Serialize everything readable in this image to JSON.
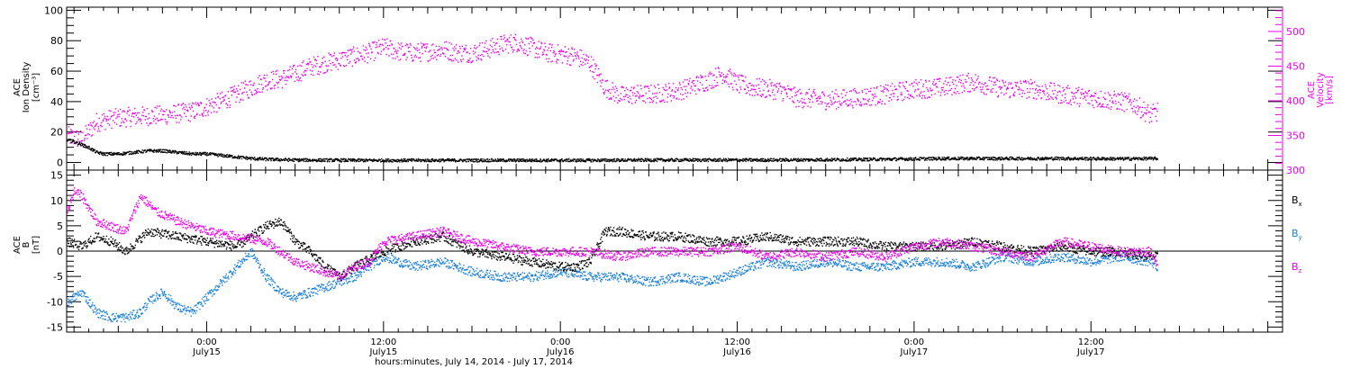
{
  "figure": {
    "xlabel": "hours:minutes, July 14, 2014 - July 17, 2014"
  },
  "colors": {
    "black": "#000000",
    "magenta": "#ee00ee",
    "blue": "#1a80d9"
  },
  "chart_data": [
    {
      "type": "scatter",
      "title": "",
      "ylabel_lines": [
        "ACE",
        "Ion Density",
        "[cm⁻³]"
      ],
      "y2label_lines": [
        "ACE",
        "Velocity",
        "[km/s]"
      ],
      "x_unit": "hours since July 14, 2014 00:00 UT",
      "xlim": [
        14.5,
        97
      ],
      "ylim": [
        -5,
        102
      ],
      "y_ticks": [
        0,
        20,
        40,
        60,
        80,
        100
      ],
      "y2lim": [
        300,
        535
      ],
      "y2_ticks": [
        300,
        350,
        400,
        450,
        500
      ],
      "x_ticks": [
        {
          "x": 24,
          "time": "0:00",
          "date": "July15"
        },
        {
          "x": 36,
          "time": "12:00",
          "date": "July15"
        },
        {
          "x": 48,
          "time": "0:00",
          "date": "July16"
        },
        {
          "x": 60,
          "time": "12:00",
          "date": "July16"
        },
        {
          "x": 72,
          "time": "0:00",
          "date": "July17"
        },
        {
          "x": 84,
          "time": "12:00",
          "date": "July17"
        }
      ],
      "series": [
        {
          "color": "black",
          "axis": "left",
          "x": [
            14.5,
            15.0,
            15.5,
            16.0,
            16.5,
            17,
            18,
            19,
            20,
            21,
            22,
            23,
            24,
            25,
            26,
            27,
            28,
            30,
            34,
            38,
            42,
            46,
            50,
            54,
            58,
            62,
            66,
            70,
            74,
            78,
            82,
            86,
            88.5
          ],
          "y": [
            15,
            14,
            12,
            10,
            7,
            6,
            6,
            7,
            8,
            8,
            7,
            6,
            6,
            5,
            4,
            3,
            2.5,
            2,
            1.8,
            1.8,
            1.8,
            1.8,
            1.8,
            2,
            2,
            2,
            2.2,
            2.5,
            3,
            3,
            3,
            2.8,
            3
          ]
        },
        {
          "color": "magenta",
          "axis": "right",
          "x": [
            14.5,
            15.5,
            16.5,
            17.5,
            19,
            21,
            23,
            25,
            26,
            27,
            28,
            29,
            30,
            31,
            32,
            33,
            34,
            35,
            36,
            37,
            38,
            39,
            40,
            41,
            42,
            43,
            44,
            45,
            46,
            47,
            48,
            49,
            50,
            51,
            52,
            53,
            54,
            56,
            58,
            59,
            60,
            61,
            62,
            63,
            64,
            66,
            68,
            70,
            72,
            74,
            75,
            76,
            78,
            80,
            82,
            84,
            86,
            87,
            88,
            88.5
          ],
          "y": [
            350,
            345,
            370,
            375,
            378,
            380,
            385,
            400,
            410,
            420,
            430,
            432,
            440,
            450,
            455,
            460,
            465,
            470,
            478,
            472,
            470,
            472,
            475,
            470,
            470,
            475,
            482,
            485,
            478,
            470,
            468,
            465,
            455,
            420,
            408,
            410,
            410,
            415,
            430,
            440,
            425,
            420,
            418,
            415,
            405,
            402,
            405,
            410,
            418,
            420,
            425,
            428,
            418,
            418,
            410,
            405,
            400,
            395,
            380,
            385
          ]
        }
      ]
    },
    {
      "type": "scatter",
      "title": "",
      "ylabel_lines": [
        "ACE",
        "B",
        "[nT]"
      ],
      "x_unit": "hours since July 14, 2014 00:00 UT",
      "xlim": [
        14.5,
        97
      ],
      "ylim": [
        -16,
        16
      ],
      "y_ticks": [
        -15,
        -10,
        -5,
        0,
        5,
        10,
        15
      ],
      "x_ticks": [
        {
          "x": 24,
          "time": "0:00",
          "date": "July15"
        },
        {
          "x": 36,
          "time": "12:00",
          "date": "July15"
        },
        {
          "x": 48,
          "time": "0:00",
          "date": "July16"
        },
        {
          "x": 60,
          "time": "12:00",
          "date": "July16"
        },
        {
          "x": 72,
          "time": "0:00",
          "date": "July17"
        },
        {
          "x": 84,
          "time": "12:00",
          "date": "July17"
        }
      ],
      "legend": [
        {
          "base": "B",
          "sub": "x",
          "color": "black"
        },
        {
          "base": "B",
          "sub": "y",
          "color": "blue"
        },
        {
          "base": "B",
          "sub": "z",
          "color": "magenta"
        }
      ],
      "legend_placement": "right",
      "series": [
        {
          "name": "Bx",
          "color": "black",
          "x": [
            14.5,
            15.5,
            16.5,
            17.5,
            18.5,
            20,
            22,
            24,
            26,
            27,
            28,
            29,
            30,
            31,
            32,
            33,
            34,
            36,
            38,
            40,
            42,
            44,
            46,
            48,
            49,
            50,
            51,
            52,
            54,
            56,
            58,
            60,
            62,
            64,
            66,
            68,
            70,
            72,
            74,
            76,
            78,
            80,
            82,
            84,
            86,
            88,
            88.5
          ],
          "y": [
            2,
            1,
            3,
            2,
            0,
            4,
            3,
            2,
            1,
            3,
            5,
            6,
            2,
            0,
            -3,
            -5,
            -3,
            0,
            2,
            3,
            0,
            -1,
            -2,
            -3,
            -3,
            -2,
            4,
            4,
            3,
            3,
            2,
            2,
            3,
            2,
            2,
            2,
            1,
            1,
            1,
            2,
            1,
            0,
            1,
            0,
            0,
            -1,
            -1
          ]
        },
        {
          "name": "By",
          "color": "blue",
          "x": [
            14.5,
            15.5,
            16.5,
            17.5,
            18.5,
            19.5,
            20,
            21,
            22,
            23,
            24,
            25,
            26,
            27,
            28,
            29,
            30,
            31,
            32,
            33,
            34,
            36,
            38,
            40,
            42,
            44,
            46,
            48,
            50,
            52,
            54,
            56,
            58,
            60,
            62,
            64,
            66,
            68,
            70,
            72,
            74,
            76,
            78,
            80,
            82,
            84,
            86,
            88,
            88.5
          ],
          "y": [
            -10,
            -8,
            -12,
            -13,
            -13,
            -12,
            -10,
            -8,
            -11,
            -12,
            -9,
            -6,
            -3,
            0,
            -5,
            -8,
            -9,
            -8,
            -7,
            -6,
            -5,
            -1,
            -3,
            -2,
            -4,
            -5,
            -5,
            -4,
            -5,
            -5,
            -6,
            -5,
            -6,
            -4,
            -2,
            -3,
            -2,
            -3,
            -3,
            -2,
            -2,
            -3,
            -1,
            -2,
            -1,
            -2,
            -1,
            -2,
            -3
          ]
        },
        {
          "name": "Bz",
          "color": "magenta",
          "x": [
            14.5,
            15.0,
            15.5,
            16.5,
            17.5,
            18.5,
            19.5,
            20.5,
            22,
            24,
            26,
            28,
            29,
            30,
            31,
            32,
            33,
            34,
            35,
            36,
            38,
            40,
            42,
            44,
            46,
            48,
            50,
            52,
            54,
            56,
            58,
            60,
            62,
            64,
            66,
            68,
            70,
            72,
            74,
            76,
            78,
            80,
            82,
            84,
            86,
            88,
            88.5
          ],
          "y": [
            8,
            12,
            11,
            6,
            5,
            4,
            11,
            8,
            6,
            4,
            3,
            2,
            0,
            -2,
            -3,
            -4,
            -5,
            -3,
            -2,
            2,
            3,
            4,
            2,
            1,
            0,
            0,
            0,
            -1,
            0,
            0,
            0,
            1,
            -1,
            0,
            -1,
            0,
            -1,
            1,
            2,
            1,
            0,
            -1,
            2,
            1,
            0,
            0,
            -3
          ]
        }
      ]
    }
  ]
}
